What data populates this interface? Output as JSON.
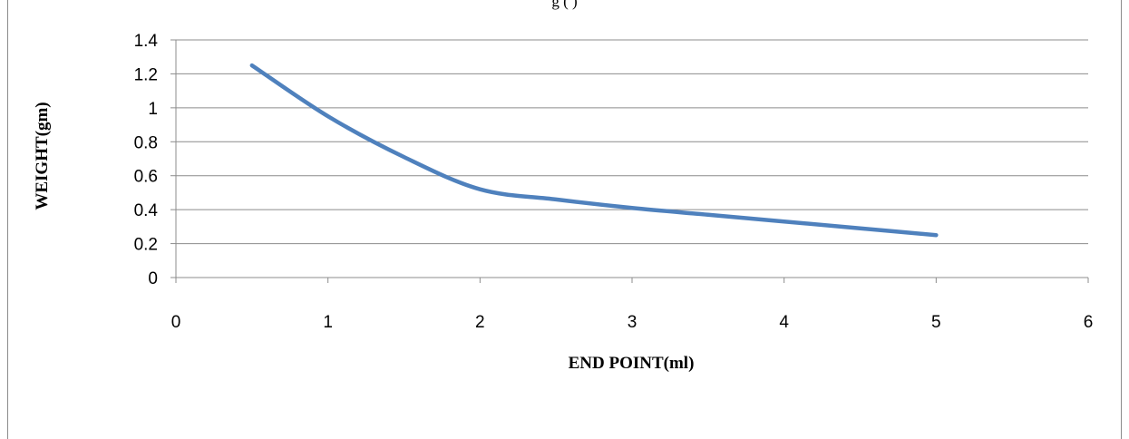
{
  "header": {
    "caption_fragment": "g                                          (  )"
  },
  "chart_data": {
    "type": "line",
    "title": "",
    "xlabel": "END POINT(ml)",
    "ylabel": "WEIGHT(gm)",
    "xlim": [
      0,
      6
    ],
    "ylim": [
      0,
      1.4
    ],
    "xticks": [
      0,
      1,
      2,
      3,
      4,
      5,
      6
    ],
    "yticks": [
      0,
      0.2,
      0.4,
      0.6,
      0.8,
      1,
      1.2,
      1.4
    ],
    "xtick_labels": [
      "0",
      "1",
      "2",
      "3",
      "4",
      "5",
      "6"
    ],
    "ytick_labels": [
      "0",
      "0.2",
      "0.4",
      "0.6",
      "0.8",
      "1",
      "1.2",
      "1.4"
    ],
    "grid": "horizontal",
    "legend": "none",
    "series": [
      {
        "color": "#4f81bd",
        "x": [
          0.5,
          1.0,
          1.5,
          2.0,
          2.5,
          3.0,
          3.5,
          4.0,
          4.5,
          5.0
        ],
        "y": [
          1.25,
          0.95,
          0.71,
          0.52,
          0.46,
          0.41,
          0.37,
          0.33,
          0.29,
          0.25
        ]
      }
    ]
  }
}
